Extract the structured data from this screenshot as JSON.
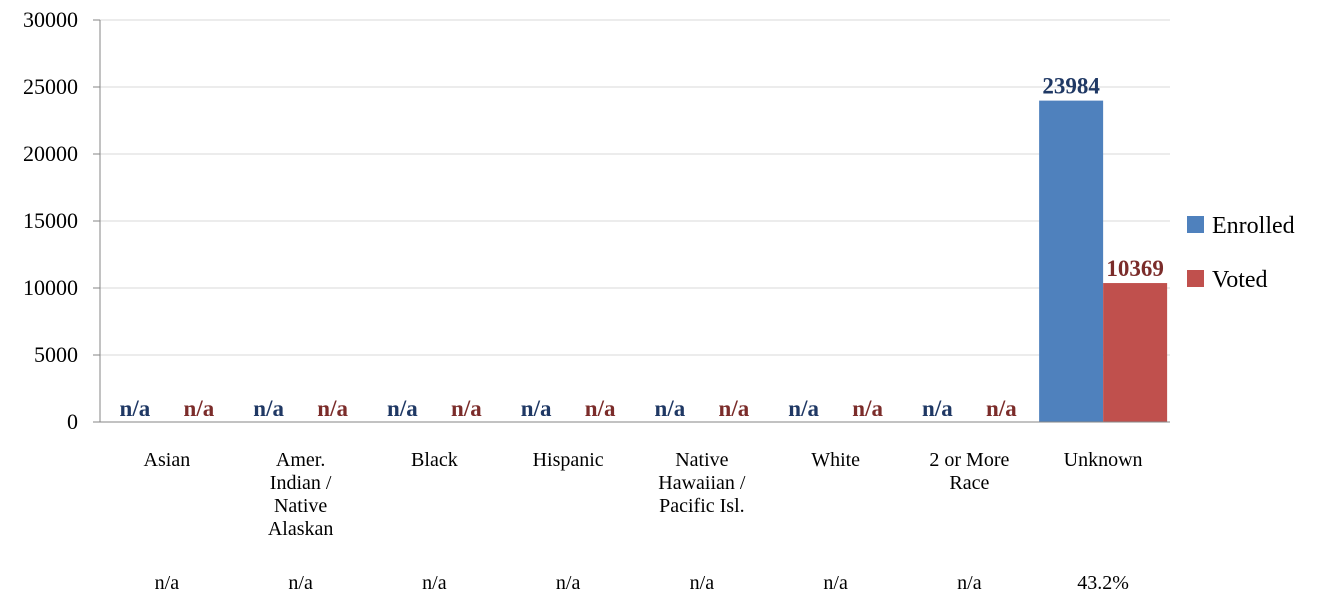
{
  "chart_data": {
    "type": "bar",
    "categories": [
      [
        "Asian"
      ],
      [
        "Amer.",
        "Indian /",
        "Native",
        "Alaskan"
      ],
      [
        "Black"
      ],
      [
        "Hispanic"
      ],
      [
        "Native",
        "Hawaiian /",
        "Pacific Isl."
      ],
      [
        "White"
      ],
      [
        "2 or More",
        "Race"
      ],
      [
        "Unknown"
      ]
    ],
    "series": [
      {
        "name": "Enrolled",
        "color": "#4F81BD",
        "label_color": "#1F3864",
        "values": [
          null,
          null,
          null,
          null,
          null,
          null,
          null,
          23984
        ],
        "labels": [
          "n/a",
          "n/a",
          "n/a",
          "n/a",
          "n/a",
          "n/a",
          "n/a",
          "23984"
        ]
      },
      {
        "name": "Voted",
        "color": "#C0504D",
        "label_color": "#7B2C2A",
        "values": [
          null,
          null,
          null,
          null,
          null,
          null,
          null,
          10369
        ],
        "labels": [
          "n/a",
          "n/a",
          "n/a",
          "n/a",
          "n/a",
          "n/a",
          "n/a",
          "10369"
        ]
      }
    ],
    "percent_row": [
      "n/a",
      "n/a",
      "n/a",
      "n/a",
      "n/a",
      "n/a",
      "n/a",
      "43.2%"
    ],
    "yticks": [
      0,
      5000,
      10000,
      15000,
      20000,
      25000,
      30000
    ],
    "ylim": [
      0,
      30000
    ],
    "grid": true,
    "legend_position": "right"
  }
}
